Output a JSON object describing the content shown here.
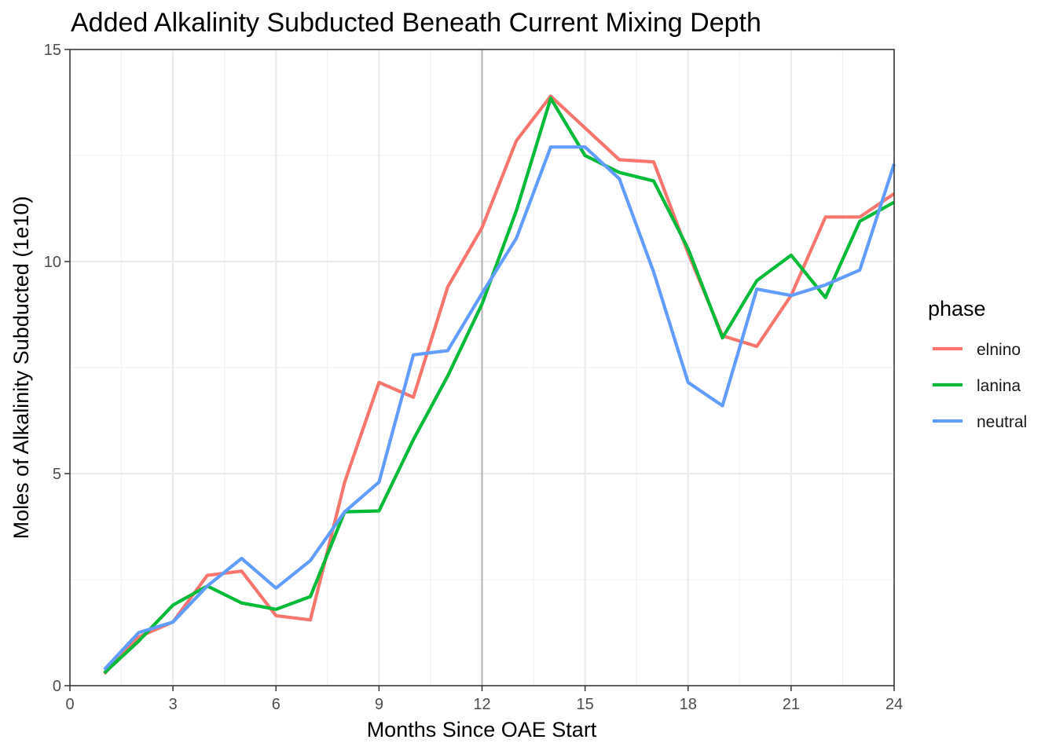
{
  "chart_data": {
    "type": "line",
    "title": "Added Alkalinity Subducted Beneath Current Mixing Depth",
    "xlabel": "Months Since OAE Start",
    "ylabel": "Moles of Alkalinity Subducted (1e10)",
    "xlim": [
      0,
      24
    ],
    "ylim": [
      0,
      15
    ],
    "x_ticks": [
      0,
      3,
      6,
      9,
      12,
      15,
      18,
      21,
      24
    ],
    "x_tick_labels": [
      "0",
      "3",
      "6",
      "9",
      "12",
      "15",
      "18",
      "21",
      "24"
    ],
    "y_ticks": [
      0,
      5,
      10,
      15
    ],
    "y_tick_labels": [
      "0",
      "5",
      "10",
      "15"
    ],
    "grid": true,
    "vline_x": 12,
    "legend": {
      "title": "phase",
      "position": "right"
    },
    "x": [
      1,
      2,
      3,
      4,
      5,
      6,
      7,
      8,
      9,
      10,
      11,
      12,
      13,
      14,
      15,
      16,
      17,
      18,
      19,
      20,
      21,
      22,
      23,
      24
    ],
    "series": [
      {
        "name": "elnino",
        "color": "#F8766D",
        "values": [
          0.28,
          1.15,
          1.5,
          2.6,
          2.7,
          1.65,
          1.55,
          4.8,
          7.15,
          6.8,
          9.4,
          10.8,
          12.85,
          13.9,
          13.15,
          12.4,
          12.35,
          10.2,
          8.25,
          8.0,
          9.2,
          11.05,
          11.05,
          11.6
        ]
      },
      {
        "name": "lanina",
        "color": "#00BA38",
        "values": [
          0.3,
          1.05,
          1.9,
          2.35,
          1.95,
          1.8,
          2.1,
          4.1,
          4.12,
          5.8,
          7.3,
          9.0,
          11.2,
          13.85,
          12.5,
          12.1,
          11.9,
          10.3,
          8.2,
          9.55,
          10.15,
          9.15,
          10.95,
          11.4
        ]
      },
      {
        "name": "neutral",
        "color": "#619CFF",
        "values": [
          0.38,
          1.25,
          1.5,
          2.35,
          3.0,
          2.3,
          2.95,
          4.1,
          4.8,
          7.8,
          7.9,
          9.25,
          10.55,
          12.7,
          12.7,
          11.95,
          9.75,
          7.15,
          6.6,
          9.35,
          9.2,
          9.45,
          9.8,
          12.3
        ]
      }
    ]
  }
}
